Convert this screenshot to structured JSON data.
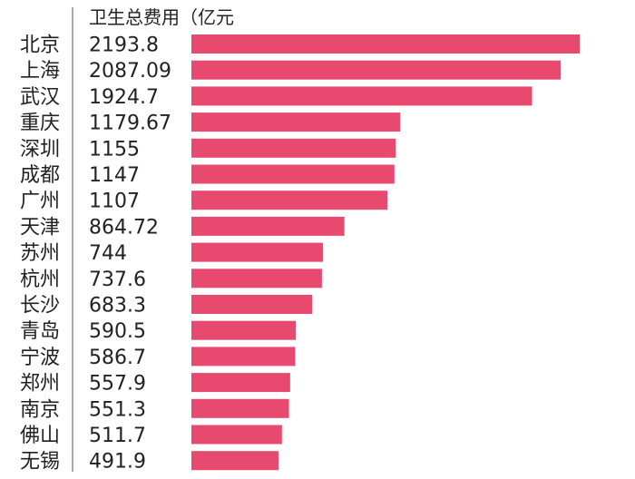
{
  "chart_data": {
    "type": "bar",
    "orientation": "horizontal",
    "title": "卫生总费用（亿元",
    "categories": [
      "北京",
      "上海",
      "武汉",
      "重庆",
      "深圳",
      "成都",
      "广州",
      "天津",
      "苏州",
      "杭州",
      "长沙",
      "青岛",
      "宁波",
      "郑州",
      "南京",
      "佛山",
      "无锡"
    ],
    "value_labels": [
      "2193.8",
      "2087.09",
      "1924.7",
      "1179.67",
      "1155",
      "1147",
      "1107",
      "864.72",
      "744",
      "737.6",
      "683.3",
      "590.5",
      "586.7",
      "557.9",
      "551.3",
      "511.7",
      "491.9"
    ],
    "values": [
      2193.8,
      2087.09,
      1924.7,
      1179.67,
      1155,
      1147,
      1107,
      864.72,
      744,
      737.6,
      683.3,
      590.5,
      586.7,
      557.9,
      551.3,
      511.7,
      491.9
    ],
    "xlim": [
      0,
      2193.8
    ],
    "bar_color": "#e8496e",
    "grid": false
  }
}
